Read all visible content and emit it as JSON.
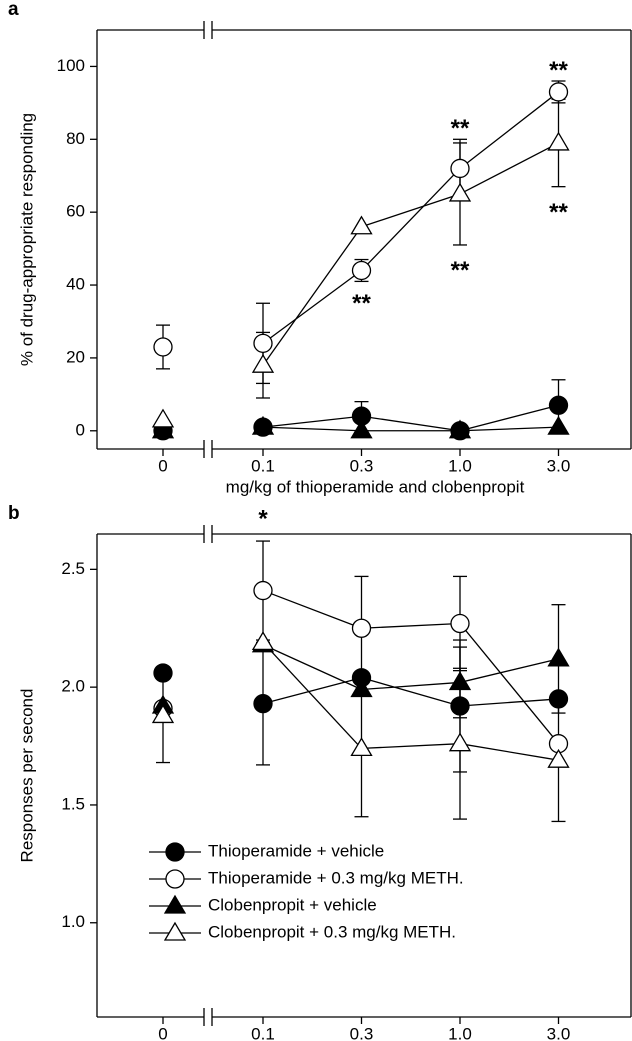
{
  "chart_data": [
    {
      "type": "line",
      "panel_label": "a",
      "y_label": "% of drug-appropriate responding",
      "x_label": "mg/kg of thioperamide and clobenpropit",
      "categories": [
        "0",
        "0.1",
        "0.3",
        "1.0",
        "3.0"
      ],
      "ylim": [
        -5,
        110
      ],
      "yticks": [
        0,
        20,
        40,
        60,
        80,
        100
      ],
      "axis_break": true,
      "legend": false,
      "series": [
        {
          "marker": "circle",
          "fill": "#000000",
          "color": "#000000",
          "values": [
            0,
            1,
            4,
            0,
            7
          ],
          "errors": [
            0,
            1,
            4,
            1,
            7
          ]
        },
        {
          "marker": "circle",
          "fill": "#ffffff",
          "color": "#000000",
          "values": [
            23,
            24,
            44,
            72,
            93
          ],
          "errors": [
            6,
            11,
            3,
            8,
            3
          ]
        },
        {
          "marker": "triangle",
          "fill": "#000000",
          "color": "#000000",
          "values": [
            0,
            1,
            0,
            0,
            1
          ],
          "errors": [
            0,
            0,
            0,
            0,
            0
          ]
        },
        {
          "marker": "triangle",
          "fill": "#ffffff",
          "color": "#000000",
          "values": [
            3,
            18,
            56,
            65,
            79
          ],
          "errors": [
            0,
            9,
            0,
            14,
            12
          ]
        }
      ],
      "annotations": [
        {
          "text": "**",
          "x": "0.3",
          "y": 36
        },
        {
          "text": "**",
          "x": "1.0",
          "y": 84
        },
        {
          "text": "**",
          "x": "1.0",
          "y": 45
        },
        {
          "text": "**",
          "x": "3.0",
          "y": 100
        },
        {
          "text": "**",
          "x": "3.0",
          "y": 61
        }
      ]
    },
    {
      "type": "line",
      "panel_label": "b",
      "y_label": "Responses per second",
      "x_label": "mg/kg of thioperamide and clobenpropit",
      "categories": [
        "0",
        "0.1",
        "0.3",
        "1.0",
        "3.0"
      ],
      "ylim": [
        0.6,
        2.65
      ],
      "yticks": [
        {
          "value": 1.0,
          "label": "1.0"
        },
        1.5,
        {
          "value": 2.0,
          "label": "2.0"
        },
        2.5
      ],
      "axis_break": true,
      "legend": "lower left",
      "series": [
        {
          "name": "Thioperamide + vehicle",
          "marker": "circle",
          "fill": "#000000",
          "color": "#000000",
          "values": [
            2.06,
            1.93,
            2.04,
            1.92,
            1.95
          ],
          "errors": [
            0,
            0.26,
            0,
            0.28,
            0
          ]
        },
        {
          "name": "Thioperamide + 0.3 mg/kg METH.",
          "marker": "circle",
          "fill": "#ffffff",
          "color": "#000000",
          "values": [
            1.91,
            2.41,
            2.25,
            2.27,
            1.76
          ],
          "errors": [
            0,
            0.21,
            0.22,
            0.2,
            0
          ]
        },
        {
          "name": "Clobenpropit + vehicle",
          "marker": "triangle",
          "fill": "#000000",
          "color": "#000000",
          "values": [
            1.92,
            2.18,
            1.99,
            2.02,
            2.12
          ],
          "errors": [
            0,
            0,
            0,
            0.15,
            0.23
          ]
        },
        {
          "name": "Clobenpropit + 0.3 mg/kg METH.",
          "marker": "triangle",
          "fill": "#ffffff",
          "color": "#000000",
          "values": [
            1.88,
            2.19,
            1.74,
            1.76,
            1.69
          ],
          "errors": [
            0.2,
            0,
            0.29,
            0.32,
            0.26
          ]
        }
      ],
      "annotations": [
        {
          "text": "*",
          "x": "0.1",
          "y": 2.73
        }
      ]
    }
  ]
}
